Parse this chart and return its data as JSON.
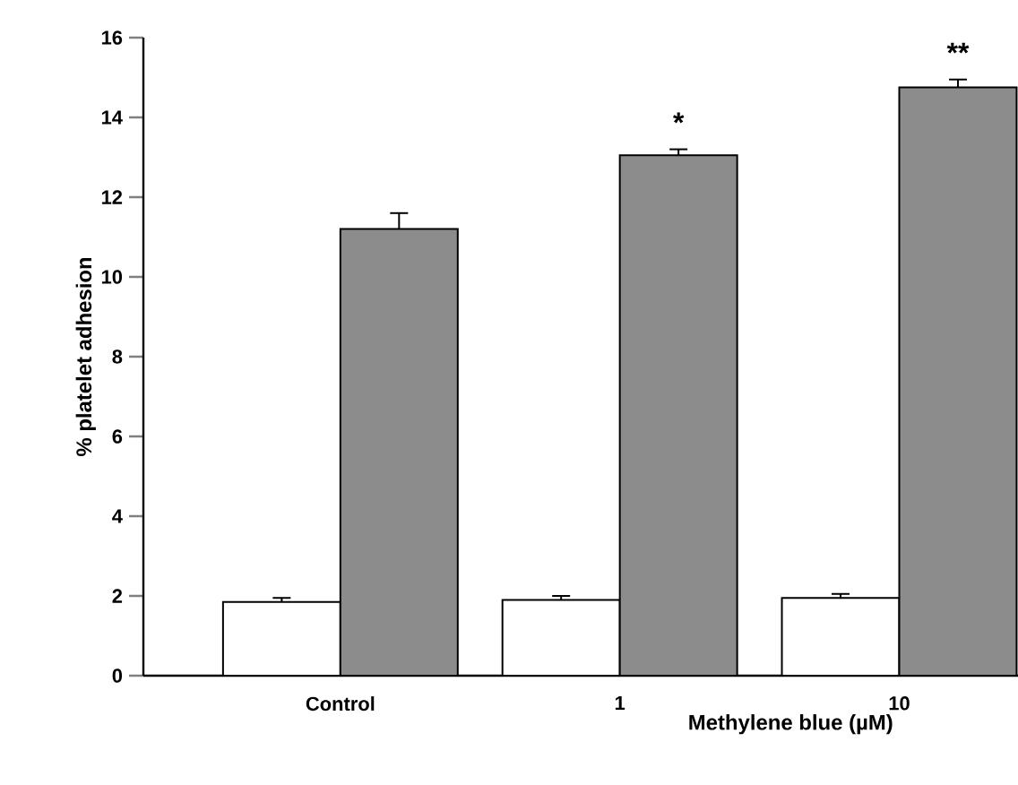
{
  "chart_data": {
    "type": "bar",
    "xlabel": "Methylene blue (µM)",
    "ylabel": "% platelet adhesion",
    "categories": [
      "Control",
      "1",
      "10"
    ],
    "series": [
      {
        "color": "#ffffff",
        "values": [
          1.85,
          1.9,
          1.95
        ],
        "errors": [
          0.1,
          0.1,
          0.1
        ]
      },
      {
        "color": "#8c8c8c",
        "values": [
          11.2,
          13.05,
          14.75
        ],
        "errors": [
          0.4,
          0.15,
          0.2
        ]
      }
    ],
    "ylim": [
      0,
      16
    ],
    "yticks": [
      0,
      2,
      4,
      6,
      8,
      10,
      12,
      14,
      16
    ],
    "grid": false,
    "annotations": [
      "*",
      "**"
    ]
  }
}
